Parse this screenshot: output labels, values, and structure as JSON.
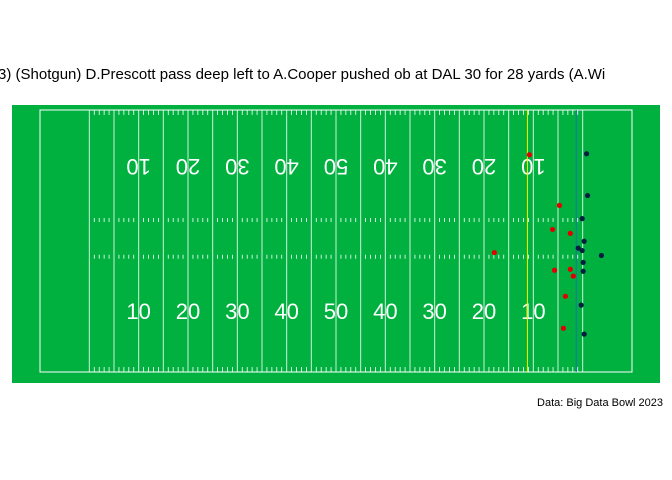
{
  "chart_data": {
    "type": "scatter",
    "title": "3) (Shotgun) D.Prescott pass deep left to A.Cooper pushed ob at DAL 30 for 28 yards (A.Wi",
    "caption": "Data: Big Data Bowl 2023",
    "yard_numbers": [
      "10",
      "20",
      "30",
      "40",
      "50",
      "40",
      "30",
      "20",
      "10"
    ],
    "xlim": [
      0,
      120
    ],
    "ylim": [
      0,
      53.3
    ],
    "first_down": {
      "x": 98.8,
      "color": "#f2f200"
    },
    "line_of_scrimmage": {
      "x": 108.7,
      "color": "#1f6fb4"
    },
    "field_color": "#00b140",
    "series": [
      {
        "color": "#e00000",
        "x": [
          99.2,
          105.3,
          103.9,
          107.5,
          92.1,
          104.3,
          107.5,
          108.1,
          106.5,
          106.1
        ],
        "values": [
          44.2,
          33.9,
          29.0,
          28.2,
          24.3,
          20.7,
          20.9,
          19.5,
          15.4,
          8.9
        ]
      },
      {
        "color": "#041e42",
        "x": [
          110.8,
          111.0,
          109.9,
          110.3,
          109.1,
          109.9,
          113.8,
          110.1,
          110.1,
          109.7,
          110.3
        ],
        "values": [
          44.4,
          35.9,
          31.2,
          26.6,
          25.2,
          24.7,
          23.7,
          22.3,
          20.5,
          13.6,
          7.7
        ]
      }
    ]
  }
}
